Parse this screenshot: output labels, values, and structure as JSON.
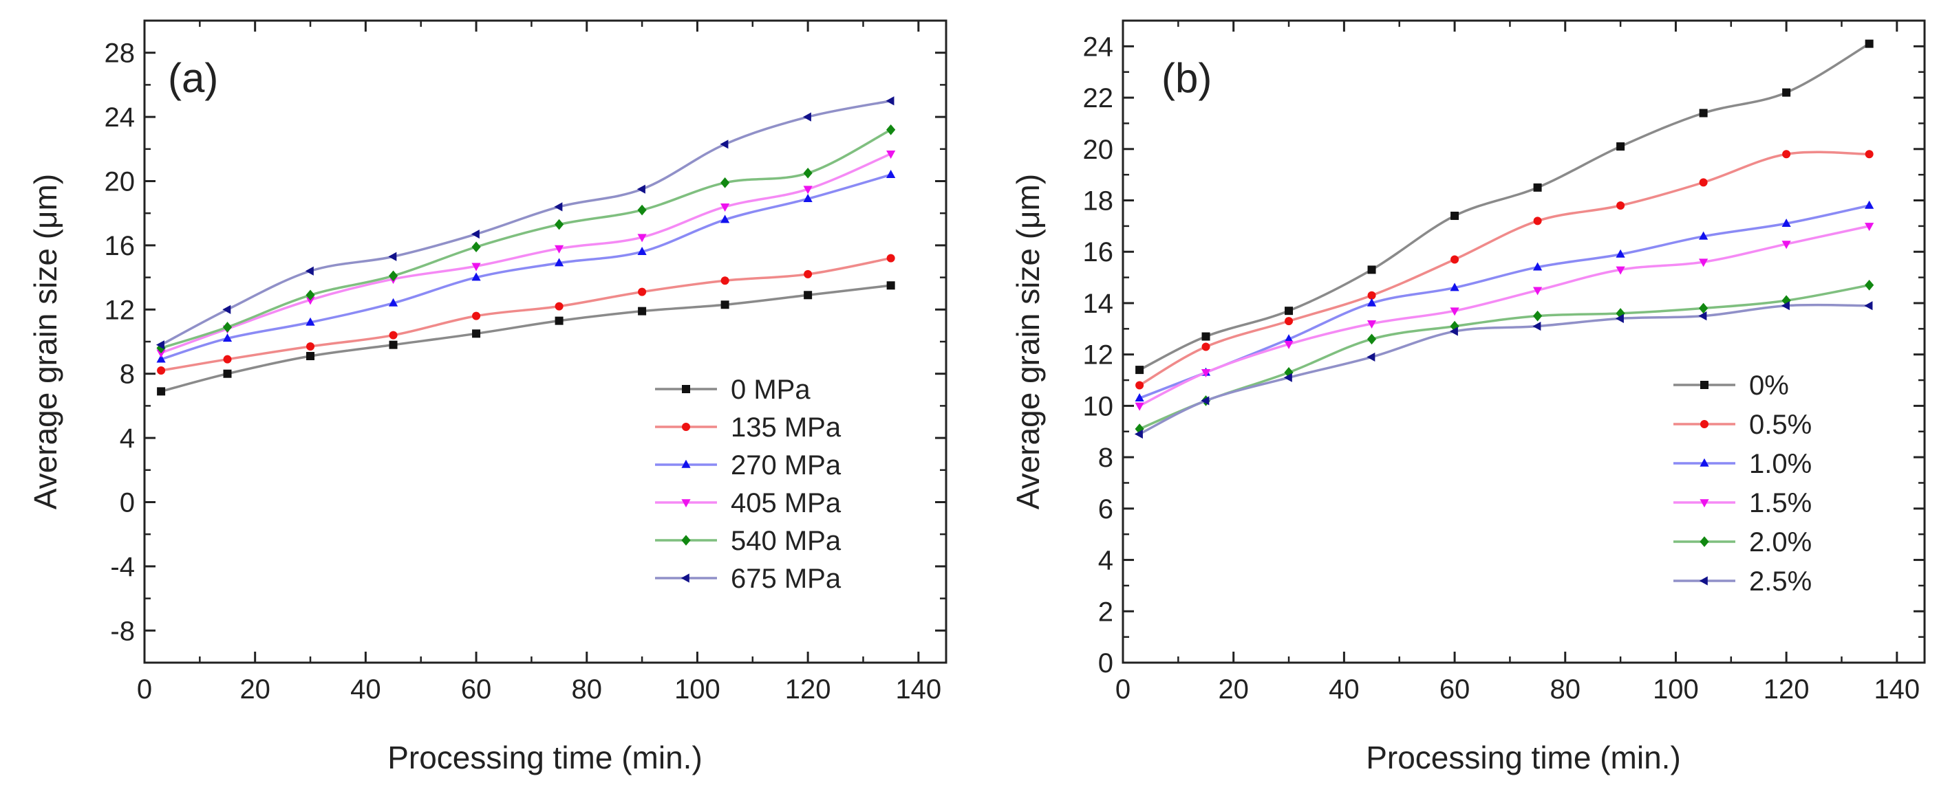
{
  "chart_data": [
    {
      "type": "line",
      "panel_label": "(a)",
      "xlabel": "Processing time (min.)",
      "ylabel": "Average grain size (μm)",
      "xlim": [
        0,
        145
      ],
      "ylim": [
        -10,
        30
      ],
      "xticks": [
        0,
        20,
        40,
        60,
        80,
        100,
        120,
        140
      ],
      "yticks": [
        -8,
        -4,
        0,
        4,
        8,
        12,
        16,
        20,
        24,
        28
      ],
      "legend_position": "bottom-right",
      "x": [
        3,
        15,
        30,
        45,
        60,
        75,
        90,
        105,
        120,
        135
      ],
      "series": [
        {
          "name": "0 MPa",
          "color": "#8a8a8a",
          "marker": "square",
          "markerColor": "#111111",
          "values": [
            6.9,
            8.0,
            9.1,
            9.8,
            10.5,
            11.3,
            11.9,
            12.3,
            12.9,
            13.5
          ]
        },
        {
          "name": "135 MPa",
          "color": "#f08a8a",
          "marker": "circle",
          "markerColor": "#ee1111",
          "values": [
            8.2,
            8.9,
            9.7,
            10.4,
            11.6,
            12.2,
            13.1,
            13.8,
            14.2,
            15.2
          ]
        },
        {
          "name": "270 MPa",
          "color": "#8a8af5",
          "marker": "triangle-up",
          "markerColor": "#1111ee",
          "values": [
            8.9,
            10.2,
            11.2,
            12.4,
            14.0,
            14.9,
            15.6,
            17.6,
            18.9,
            20.4
          ]
        },
        {
          "name": "405 MPa",
          "color": "#f58af5",
          "marker": "triangle-down",
          "markerColor": "#ee11ee",
          "values": [
            9.3,
            10.8,
            12.6,
            13.9,
            14.7,
            15.8,
            16.5,
            18.4,
            19.5,
            21.7
          ]
        },
        {
          "name": "540 MPa",
          "color": "#7fbf7f",
          "marker": "diamond",
          "markerColor": "#118811",
          "values": [
            9.6,
            10.9,
            12.9,
            14.1,
            15.9,
            17.3,
            18.2,
            19.9,
            20.5,
            23.2
          ]
        },
        {
          "name": "675 MPa",
          "color": "#9090c8",
          "marker": "triangle-left",
          "markerColor": "#11118a",
          "values": [
            9.8,
            12.0,
            14.4,
            15.3,
            16.7,
            18.4,
            19.5,
            22.3,
            24.0,
            25.0
          ]
        }
      ]
    },
    {
      "type": "line",
      "panel_label": "(b)",
      "xlabel": "Processing time (min.)",
      "ylabel": "Average grain size (μm)",
      "xlim": [
        0,
        145
      ],
      "ylim": [
        0,
        25
      ],
      "xticks": [
        0,
        20,
        40,
        60,
        80,
        100,
        120,
        140
      ],
      "yticks": [
        0,
        2,
        4,
        6,
        8,
        10,
        12,
        14,
        16,
        18,
        20,
        22,
        24
      ],
      "legend_position": "bottom-right",
      "x": [
        3,
        15,
        30,
        45,
        60,
        75,
        90,
        105,
        120,
        135
      ],
      "series": [
        {
          "name": "0%",
          "color": "#8a8a8a",
          "marker": "square",
          "markerColor": "#111111",
          "values": [
            11.4,
            12.7,
            13.7,
            15.3,
            17.4,
            18.5,
            20.1,
            21.4,
            22.2,
            24.1
          ]
        },
        {
          "name": "0.5%",
          "color": "#f08a8a",
          "marker": "circle",
          "markerColor": "#ee1111",
          "values": [
            10.8,
            12.3,
            13.3,
            14.3,
            15.7,
            17.2,
            17.8,
            18.7,
            19.8,
            19.8
          ]
        },
        {
          "name": "1.0%",
          "color": "#8a8af5",
          "marker": "triangle-up",
          "markerColor": "#1111ee",
          "values": [
            10.3,
            11.3,
            12.6,
            14.0,
            14.6,
            15.4,
            15.9,
            16.6,
            17.1,
            17.8
          ]
        },
        {
          "name": "1.5%",
          "color": "#f58af5",
          "marker": "triangle-down",
          "markerColor": "#ee11ee",
          "values": [
            10.0,
            11.3,
            12.4,
            13.2,
            13.7,
            14.5,
            15.3,
            15.6,
            16.3,
            17.0
          ]
        },
        {
          "name": "2.0%",
          "color": "#7fbf7f",
          "marker": "diamond",
          "markerColor": "#118811",
          "values": [
            9.1,
            10.2,
            11.3,
            12.6,
            13.1,
            13.5,
            13.6,
            13.8,
            14.1,
            14.7
          ]
        },
        {
          "name": "2.5%",
          "color": "#9090c8",
          "marker": "triangle-left",
          "markerColor": "#11118a",
          "values": [
            8.9,
            10.2,
            11.1,
            11.9,
            12.9,
            13.1,
            13.4,
            13.5,
            13.9,
            13.9
          ]
        }
      ]
    }
  ]
}
